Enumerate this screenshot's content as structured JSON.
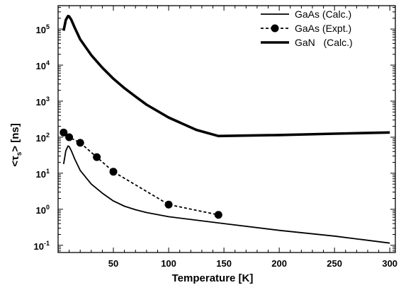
{
  "chart_data": {
    "type": "line",
    "xlabel": "Temperature [K]",
    "ylabel_main": "<τ",
    "ylabel_sub": "s",
    "ylabel_tail": "> [ns]",
    "xlim": [
      0,
      305
    ],
    "ylim_log10": [
      -1.2,
      5.65
    ],
    "yscale": "log",
    "x_ticks": [
      50,
      100,
      150,
      200,
      250,
      300
    ],
    "x_tick_labels": [
      "50",
      "100",
      "150",
      "200",
      "250",
      "300"
    ],
    "y_ticks": [
      {
        "value": 0.1,
        "base": "10",
        "exp": "-1"
      },
      {
        "value": 1,
        "base": "10",
        "exp": "0"
      },
      {
        "value": 10,
        "base": "10",
        "exp": "1"
      },
      {
        "value": 100,
        "base": "10",
        "exp": "2"
      },
      {
        "value": 1000,
        "base": "10",
        "exp": "3"
      },
      {
        "value": 10000,
        "base": "10",
        "exp": "4"
      },
      {
        "value": 100000,
        "base": "10",
        "exp": "5"
      }
    ],
    "legend_position": "top-right",
    "series": [
      {
        "name": "GaAs (Calc.)",
        "style": "thin-solid",
        "color": "#000000",
        "x": [
          5,
          7,
          9,
          10,
          12,
          15,
          20,
          30,
          40,
          50,
          60,
          70,
          80,
          100,
          150,
          200,
          250,
          300
        ],
        "y": [
          18,
          42,
          57,
          55,
          42,
          25,
          12,
          5,
          2.8,
          1.7,
          1.22,
          0.97,
          0.81,
          0.62,
          0.4,
          0.26,
          0.18,
          0.115
        ]
      },
      {
        "name": "GaAs (Expt.)",
        "style": "dashed-markers",
        "color": "#000000",
        "x": [
          5,
          10,
          20,
          35,
          50,
          100,
          145
        ],
        "y": [
          135,
          100,
          70,
          28,
          11,
          1.35,
          0.7
        ]
      },
      {
        "name": "GaN   (Calc.)",
        "style": "thick-solid",
        "color": "#000000",
        "x": [
          5,
          7,
          9,
          10,
          12,
          15,
          20,
          30,
          40,
          50,
          60,
          70,
          80,
          100,
          125,
          145,
          200,
          250,
          300
        ],
        "y": [
          90000,
          180000,
          230000,
          225000,
          180000,
          110000,
          52000,
          19000,
          8500,
          4200,
          2300,
          1350,
          800,
          350,
          160,
          108,
          115,
          125,
          135
        ]
      }
    ]
  }
}
